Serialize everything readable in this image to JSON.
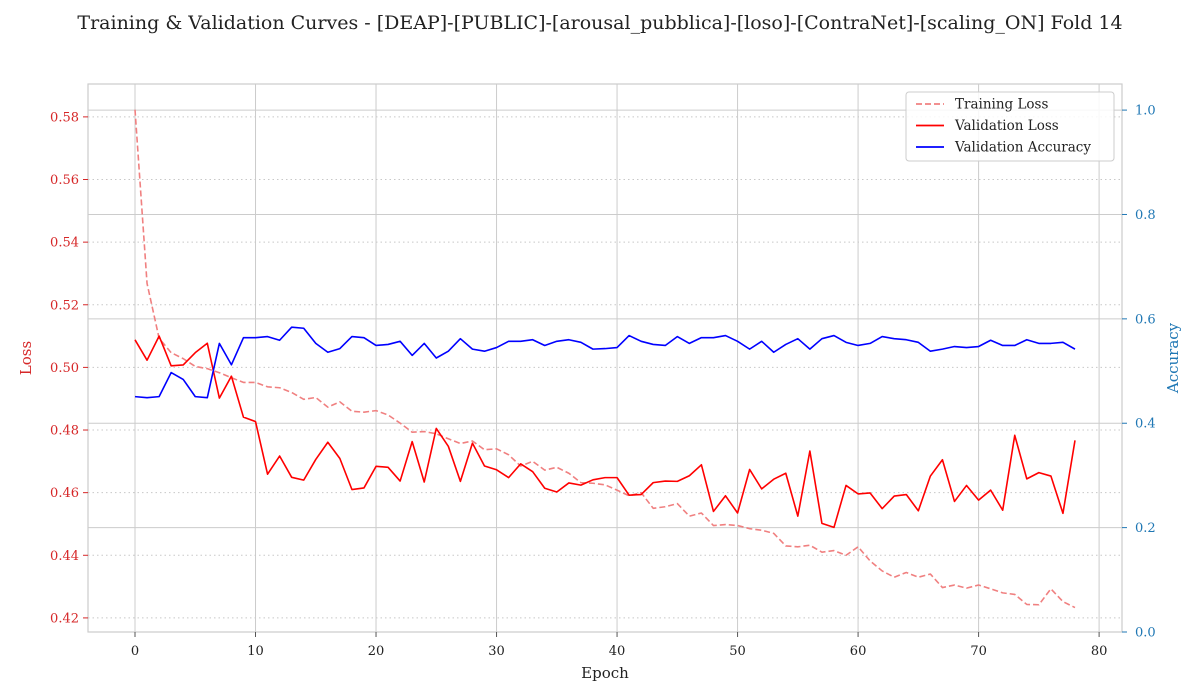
{
  "chart_data": {
    "type": "line",
    "title": "Training & Validation Curves - [DEAP]-[PUBLIC]-[arousal_pubblica]-[loso]-[ContraNet]-[scaling_ON] Fold 14",
    "xlabel": "Epoch",
    "ylabel_left": "Loss",
    "ylabel_right": "Accuracy",
    "xlim": [
      -3.9,
      81.9
    ],
    "ylim_left": [
      0.4155,
      0.5905
    ],
    "ylim_right": [
      0.0,
      1.05
    ],
    "xticks": [
      0,
      10,
      20,
      30,
      40,
      50,
      60,
      70,
      80
    ],
    "yticks_left": [
      0.42,
      0.44,
      0.46,
      0.48,
      0.5,
      0.52,
      0.54,
      0.56,
      0.58
    ],
    "yticks_right": [
      0.0,
      0.2,
      0.4,
      0.6,
      0.8,
      1.0
    ],
    "grid": true,
    "legend_position": "top-right",
    "colors": {
      "left_axis": "#d62728",
      "right_axis": "#1f77b4",
      "training_loss": "#f08080",
      "validation_loss": "#ff0000",
      "validation_accuracy": "#0000ff"
    },
    "series": [
      {
        "name": "Training Loss",
        "axis": "left",
        "style": "dashed",
        "values": [
          0.5823,
          0.5268,
          0.5093,
          0.5047,
          0.5028,
          0.5003,
          0.4996,
          0.4983,
          0.4967,
          0.4952,
          0.4952,
          0.4938,
          0.4935,
          0.492,
          0.4898,
          0.4904,
          0.4873,
          0.489,
          0.486,
          0.4857,
          0.4862,
          0.4848,
          0.4822,
          0.4793,
          0.4795,
          0.4788,
          0.4772,
          0.4757,
          0.4765,
          0.4737,
          0.474,
          0.4721,
          0.4685,
          0.47,
          0.4672,
          0.4681,
          0.4662,
          0.4632,
          0.463,
          0.4625,
          0.4608,
          0.459,
          0.46,
          0.455,
          0.4555,
          0.4565,
          0.4525,
          0.4535,
          0.4495,
          0.4498,
          0.4495,
          0.4485,
          0.448,
          0.447,
          0.443,
          0.4427,
          0.4432,
          0.441,
          0.4415,
          0.44,
          0.4427,
          0.4382,
          0.435,
          0.433,
          0.4345,
          0.433,
          0.434,
          0.4297,
          0.4305,
          0.4295,
          0.4305,
          0.4293,
          0.428,
          0.4275,
          0.4243,
          0.4242,
          0.4293,
          0.4252,
          0.4233
        ]
      },
      {
        "name": "Validation Loss",
        "axis": "left",
        "style": "solid",
        "values": [
          0.5088,
          0.5023,
          0.51,
          0.5005,
          0.5008,
          0.5047,
          0.5077,
          0.4902,
          0.4972,
          0.4841,
          0.4827,
          0.4659,
          0.4717,
          0.4649,
          0.464,
          0.4706,
          0.4761,
          0.4709,
          0.461,
          0.4615,
          0.4684,
          0.4681,
          0.4637,
          0.4763,
          0.4634,
          0.4805,
          0.4748,
          0.4636,
          0.4758,
          0.4685,
          0.4673,
          0.4648,
          0.4692,
          0.4667,
          0.4614,
          0.4602,
          0.4631,
          0.4624,
          0.4641,
          0.4648,
          0.4648,
          0.4592,
          0.4594,
          0.4632,
          0.4637,
          0.4636,
          0.4654,
          0.4689,
          0.454,
          0.459,
          0.4535,
          0.4674,
          0.4612,
          0.4643,
          0.4662,
          0.4525,
          0.4733,
          0.4502,
          0.4489,
          0.4623,
          0.4596,
          0.4599,
          0.4549,
          0.4589,
          0.4594,
          0.4542,
          0.4653,
          0.4705,
          0.4572,
          0.4623,
          0.4576,
          0.4608,
          0.4544,
          0.4783,
          0.4644,
          0.4664,
          0.4653,
          0.4534,
          0.4767
        ]
      },
      {
        "name": "Validation Accuracy",
        "axis": "right",
        "style": "solid",
        "values": [
          0.451,
          0.449,
          0.451,
          0.497,
          0.484,
          0.451,
          0.449,
          0.553,
          0.512,
          0.564,
          0.564,
          0.566,
          0.559,
          0.584,
          0.582,
          0.553,
          0.536,
          0.543,
          0.566,
          0.564,
          0.549,
          0.551,
          0.557,
          0.53,
          0.553,
          0.525,
          0.538,
          0.562,
          0.542,
          0.538,
          0.545,
          0.557,
          0.557,
          0.56,
          0.549,
          0.557,
          0.56,
          0.555,
          0.542,
          0.543,
          0.545,
          0.568,
          0.557,
          0.551,
          0.549,
          0.566,
          0.553,
          0.564,
          0.564,
          0.568,
          0.557,
          0.542,
          0.557,
          0.536,
          0.551,
          0.562,
          0.542,
          0.562,
          0.568,
          0.555,
          0.549,
          0.553,
          0.566,
          0.562,
          0.56,
          0.555,
          0.538,
          0.542,
          0.547,
          0.545,
          0.547,
          0.559,
          0.549,
          0.549,
          0.56,
          0.553,
          0.553,
          0.555,
          0.542
        ]
      }
    ]
  }
}
